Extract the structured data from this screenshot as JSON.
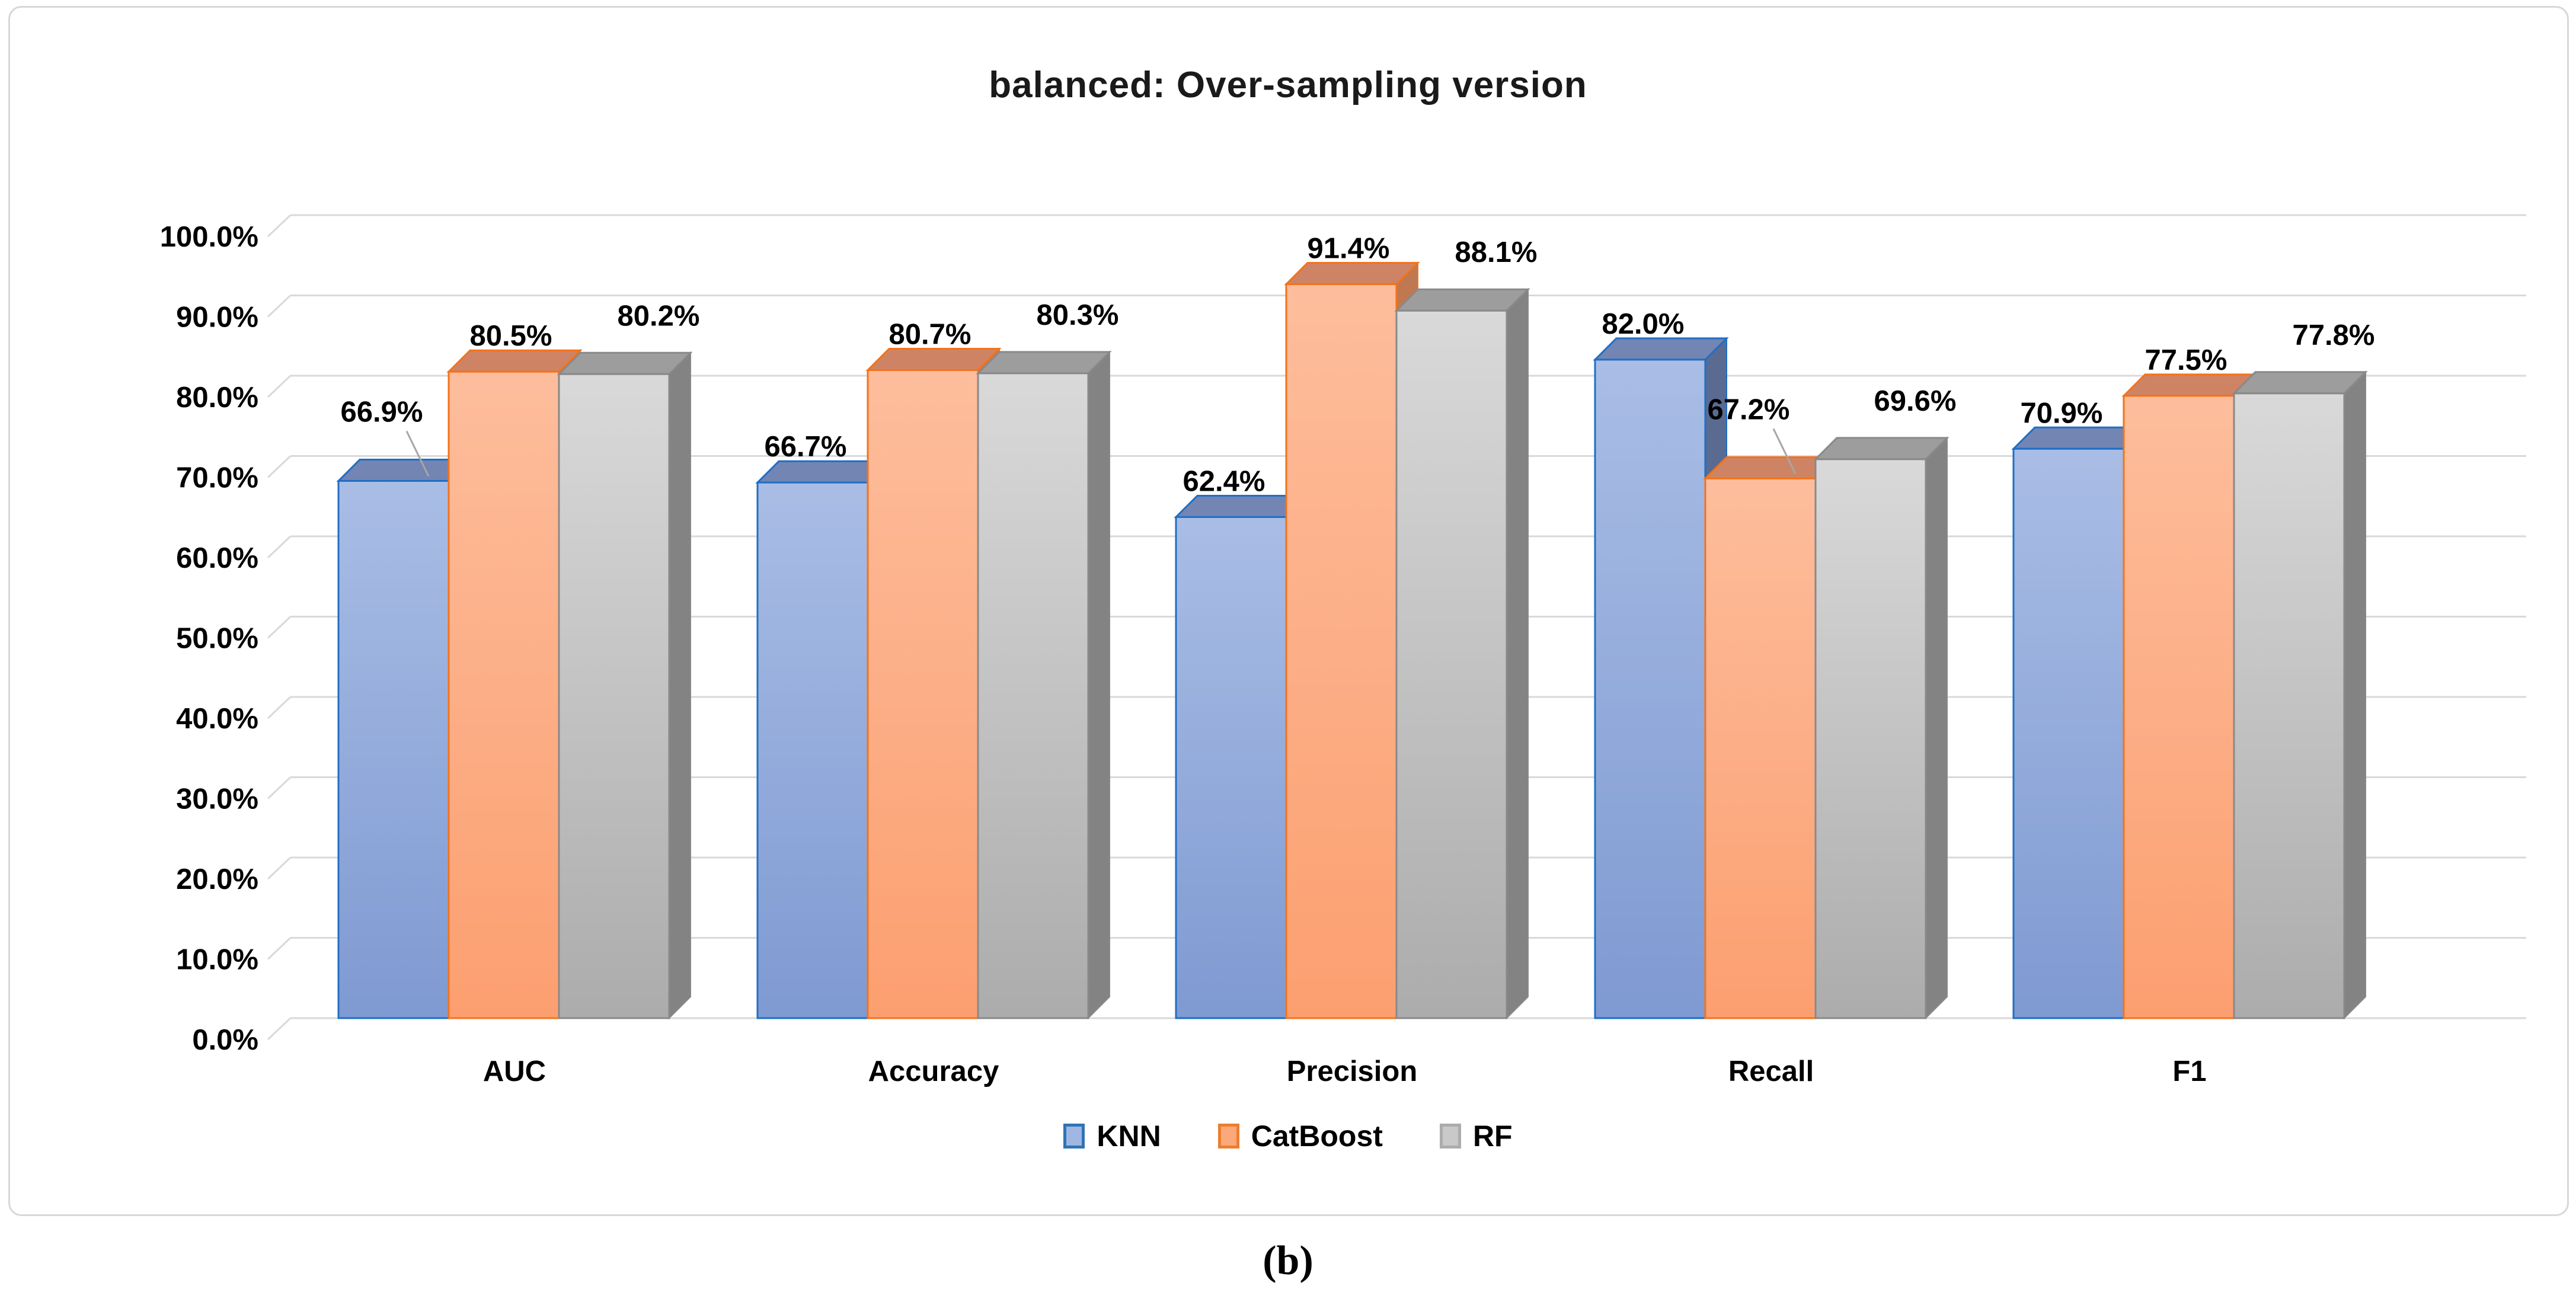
{
  "figure": {
    "caption": "(b)"
  },
  "chart_data": {
    "type": "bar",
    "projection": "3d-clustered-column",
    "title": "balanced: Over-sampling version",
    "categories": [
      "AUC",
      "Accuracy",
      "Precision",
      "Recall",
      "F1"
    ],
    "series": [
      {
        "name": "KNN",
        "values": [
          66.9,
          66.7,
          62.4,
          82.0,
          70.9
        ],
        "labels": [
          "66.9%",
          "66.7%",
          "62.4%",
          "82.0%",
          "70.9%"
        ],
        "colors": {
          "front_top": "#A9BDE5",
          "front_bottom": "#7F9AD2",
          "border": "#1F6FC6",
          "top_face": "#7285B3",
          "side_face": "#5A6B92",
          "legend_fill": "#9FB7E2",
          "legend_border": "#2E74B5"
        }
      },
      {
        "name": "CatBoost",
        "values": [
          80.5,
          80.7,
          91.4,
          67.2,
          77.5
        ],
        "labels": [
          "80.5%",
          "80.7%",
          "91.4%",
          "67.2%",
          "77.5%"
        ],
        "colors": {
          "front_top": "#FDBD9C",
          "front_bottom": "#FC9F70",
          "border": "#F4721B",
          "top_face": "#CE8464",
          "side_face": "#C07850",
          "legend_fill": "#FBA97B",
          "legend_border": "#ED7D31"
        }
      },
      {
        "name": "RF",
        "values": [
          80.2,
          80.3,
          88.1,
          69.6,
          77.8
        ],
        "labels": [
          "80.2%",
          "80.3%",
          "88.1%",
          "69.6%",
          "77.8%"
        ],
        "colors": {
          "front_top": "#D9D9D9",
          "front_bottom": "#ACACAC",
          "border": "#898989",
          "top_face": "#9D9D9D",
          "side_face": "#838383",
          "legend_fill": "#C9C9C9",
          "legend_border": "#ACACAC"
        }
      }
    ],
    "y_axis": {
      "min": 0,
      "max": 100,
      "step": 10,
      "tick_labels": [
        "0.0%",
        "10.0%",
        "20.0%",
        "30.0%",
        "40.0%",
        "50.0%",
        "60.0%",
        "70.0%",
        "80.0%",
        "90.0%",
        "100.0%"
      ]
    },
    "ylim": [
      0,
      100
    ],
    "grid": true,
    "gridline_color": "#D9D9D9",
    "leader_line_color": "#A6A6A6",
    "legend_position": "bottom",
    "leader_lines": [
      {
        "series": 0,
        "category": 0
      },
      {
        "series": 1,
        "category": 3
      }
    ]
  }
}
